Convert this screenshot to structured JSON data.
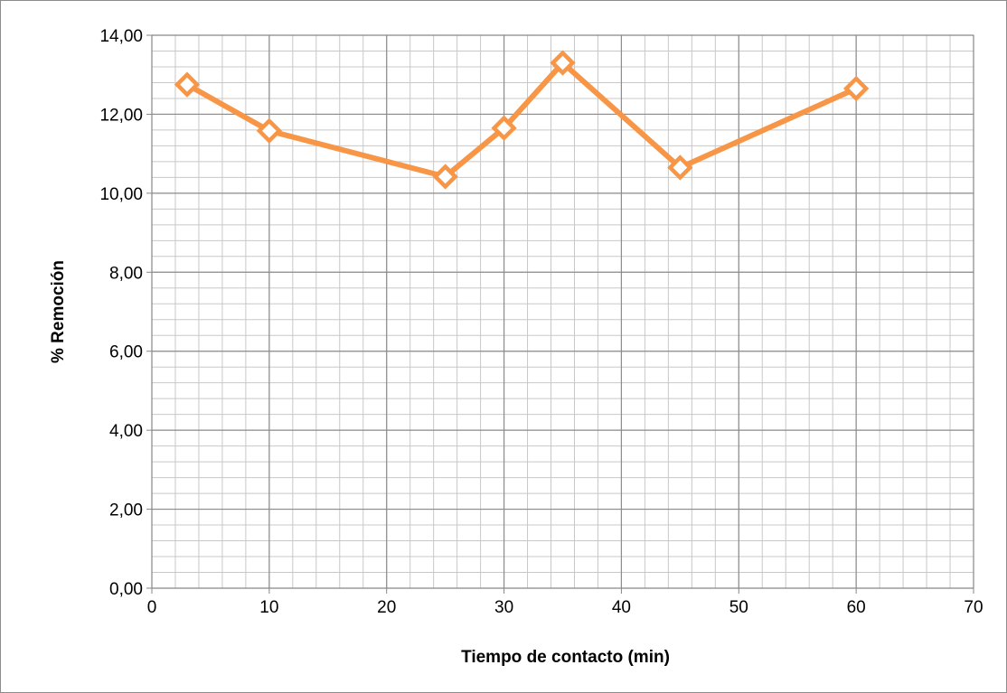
{
  "chart_data": {
    "type": "line",
    "xlabel": "Tiempo de contacto (min)",
    "ylabel": "% Remoción",
    "xlim": [
      0,
      70
    ],
    "ylim": [
      0,
      14
    ],
    "x_ticks": [
      "0",
      "10",
      "20",
      "30",
      "40",
      "50",
      "60",
      "70"
    ],
    "y_ticks": [
      "0,00",
      "2,00",
      "4,00",
      "6,00",
      "8,00",
      "10,00",
      "12,00",
      "14,00"
    ],
    "grid": true,
    "minor_grid": true,
    "series": [
      {
        "x": [
          3,
          10,
          25,
          30,
          35,
          45,
          60
        ],
        "y": [
          12.75,
          11.58,
          10.42,
          11.65,
          13.3,
          10.65,
          12.65
        ],
        "color": "#f79646",
        "marker": "diamond-open"
      }
    ]
  }
}
